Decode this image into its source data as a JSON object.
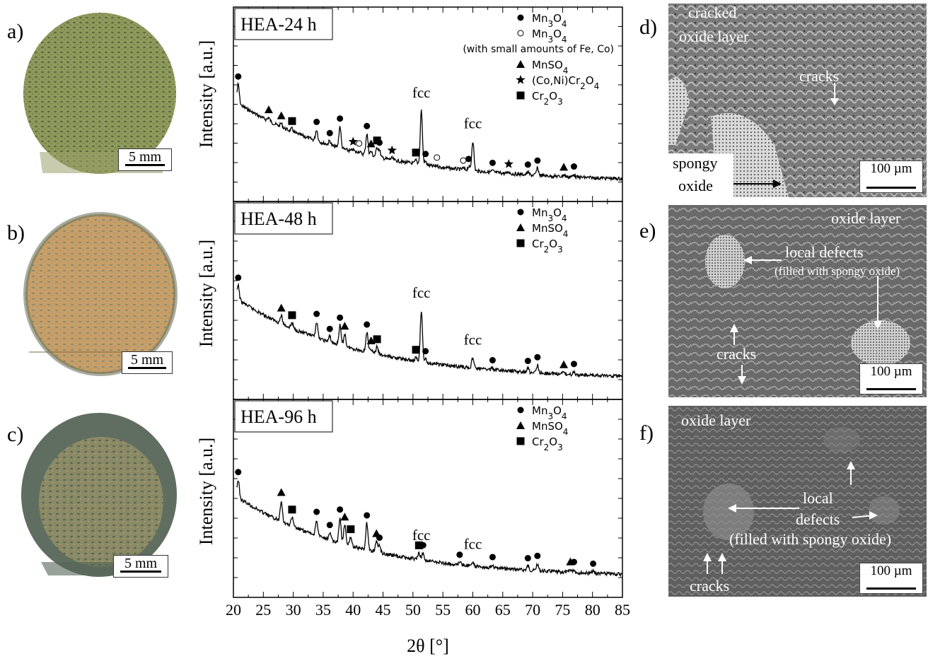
{
  "panel_labels": {
    "a": "a)",
    "b": "b)",
    "c": "c)",
    "d": "d)",
    "e": "e)",
    "f": "f)"
  },
  "photos": [
    {
      "label": "a)",
      "scale": "5 mm",
      "color": "#8a9257"
    },
    {
      "label": "b)",
      "scale": "5 mm",
      "color": "#c39a62"
    },
    {
      "label": "c)",
      "scale": "5 mm",
      "color": "#7a7f5e"
    }
  ],
  "sem": {
    "d": {
      "scale": "100 µm",
      "texts": [
        "cracked",
        "oxide layer",
        "cracks",
        "spongy",
        "oxide"
      ]
    },
    "e": {
      "scale": "100 µm",
      "texts": [
        "oxide layer",
        "local defects",
        "(filled with spongy oxide)",
        "cracks"
      ]
    },
    "f": {
      "scale": "100 µm",
      "texts": [
        "oxide layer",
        "local",
        "defects",
        "(filled with spongy oxide)",
        "cracks"
      ]
    }
  },
  "colors": {
    "line": "#000000",
    "frame": "#000000"
  },
  "chart_data": [
    {
      "type": "line",
      "title": "HEA-24 h",
      "ylabel": "Intensity [a.u.]",
      "xlabel": "2θ [°]",
      "xlim": [
        20,
        85
      ],
      "xticks": [
        20,
        25,
        30,
        35,
        40,
        45,
        50,
        55,
        60,
        65,
        70,
        75,
        80,
        85
      ],
      "legend": [
        {
          "symbol": "circle",
          "text": "Mn3O4"
        },
        {
          "symbol": "open-circle",
          "text": "Mn3O4",
          "note": "(with small amounts of Fe, Co)"
        },
        {
          "symbol": "triangle",
          "text": "MnSO4"
        },
        {
          "symbol": "star",
          "text": "(Co,Ni)Cr2O4"
        },
        {
          "symbol": "square",
          "text": "Cr2O3"
        }
      ],
      "annotations": [
        {
          "text": "fcc",
          "x": 51.4
        },
        {
          "text": "fcc",
          "x": 60.0
        }
      ],
      "peaks": [
        {
          "x": 20.8,
          "h": 0.55,
          "m": "circle"
        },
        {
          "x": 25.9,
          "h": 0.1,
          "m": "triangle"
        },
        {
          "x": 28.0,
          "h": 0.1,
          "m": "triangle"
        },
        {
          "x": 29.8,
          "h": 0.08,
          "m": "square"
        },
        {
          "x": 33.9,
          "h": 0.32,
          "m": "circle"
        },
        {
          "x": 36.1,
          "h": 0.12,
          "m": "circle"
        },
        {
          "x": 37.8,
          "h": 0.62,
          "m": "circle"
        },
        {
          "x": 40.0,
          "h": 0.06,
          "m": "star"
        },
        {
          "x": 41.0,
          "h": 0.05,
          "m": "open-circle"
        },
        {
          "x": 42.3,
          "h": 0.6,
          "m": "circle"
        },
        {
          "x": 43.0,
          "h": 0.12,
          "m": "triangle"
        },
        {
          "x": 44.0,
          "h": 0.25,
          "m": "square"
        },
        {
          "x": 44.4,
          "h": 0.2,
          "m": "circle"
        },
        {
          "x": 46.5,
          "h": 0.05,
          "m": "star"
        },
        {
          "x": 50.5,
          "h": 0.1,
          "m": "square"
        },
        {
          "x": 51.4,
          "h": 1.55,
          "m": null
        },
        {
          "x": 52.1,
          "h": 0.1,
          "m": "circle"
        },
        {
          "x": 54.0,
          "h": 0.04,
          "m": "open-circle"
        },
        {
          "x": 58.4,
          "h": 0.04,
          "m": "open-circle"
        },
        {
          "x": 59.3,
          "h": 0.1,
          "m": "circle"
        },
        {
          "x": 60.0,
          "h": 0.85,
          "m": null
        },
        {
          "x": 63.3,
          "h": 0.05,
          "m": "circle"
        },
        {
          "x": 66.0,
          "h": 0.05,
          "m": "star"
        },
        {
          "x": 69.2,
          "h": 0.07,
          "m": "circle"
        },
        {
          "x": 70.8,
          "h": 0.2,
          "m": "circle"
        },
        {
          "x": 75.2,
          "h": 0.05,
          "m": "triangle"
        },
        {
          "x": 76.9,
          "h": 0.08,
          "m": "circle"
        }
      ]
    },
    {
      "type": "line",
      "title": "HEA-48 h",
      "ylabel": "Intensity [a.u.]",
      "xlabel": "2θ [°]",
      "xlim": [
        20,
        85
      ],
      "xticks": [
        20,
        25,
        30,
        35,
        40,
        45,
        50,
        55,
        60,
        65,
        70,
        75,
        80,
        85
      ],
      "legend": [
        {
          "symbol": "circle",
          "text": "Mn3O4"
        },
        {
          "symbol": "triangle",
          "text": "MnSO4"
        },
        {
          "symbol": "square",
          "text": "Cr2O3"
        }
      ],
      "annotations": [
        {
          "text": "fcc",
          "x": 51.4
        },
        {
          "text": "fcc",
          "x": 60.0
        }
      ],
      "peaks": [
        {
          "x": 20.8,
          "h": 0.4,
          "m": "circle"
        },
        {
          "x": 28.0,
          "h": 0.22,
          "m": "triangle"
        },
        {
          "x": 29.8,
          "h": 0.15,
          "m": "square"
        },
        {
          "x": 33.9,
          "h": 0.45,
          "m": "circle"
        },
        {
          "x": 36.1,
          "h": 0.15,
          "m": "circle"
        },
        {
          "x": 37.8,
          "h": 0.55,
          "m": "circle"
        },
        {
          "x": 38.6,
          "h": 0.35,
          "m": "triangle"
        },
        {
          "x": 42.3,
          "h": 0.55,
          "m": "circle"
        },
        {
          "x": 43.0,
          "h": 0.12,
          "m": "triangle"
        },
        {
          "x": 44.0,
          "h": 0.2,
          "m": "square"
        },
        {
          "x": 50.5,
          "h": 0.1,
          "m": "square"
        },
        {
          "x": 51.4,
          "h": 1.45,
          "m": null
        },
        {
          "x": 52.1,
          "h": 0.1,
          "m": "circle"
        },
        {
          "x": 60.0,
          "h": 0.3,
          "m": null
        },
        {
          "x": 63.3,
          "h": 0.05,
          "m": "circle"
        },
        {
          "x": 69.2,
          "h": 0.1,
          "m": "circle"
        },
        {
          "x": 70.8,
          "h": 0.22,
          "m": "circle"
        },
        {
          "x": 75.2,
          "h": 0.05,
          "m": "triangle"
        },
        {
          "x": 76.9,
          "h": 0.08,
          "m": "circle"
        }
      ]
    },
    {
      "type": "line",
      "title": "HEA-96 h",
      "ylabel": "Intensity [a.u.]",
      "xlabel": "2θ [°]",
      "xlim": [
        20,
        85
      ],
      "xticks": [
        20,
        25,
        30,
        35,
        40,
        45,
        50,
        55,
        60,
        65,
        70,
        75,
        80,
        85
      ],
      "legend": [
        {
          "symbol": "circle",
          "text": "Mn3O4"
        },
        {
          "symbol": "triangle",
          "text": "MnSO4"
        },
        {
          "symbol": "square",
          "text": "Cr2O3"
        }
      ],
      "annotations": [
        {
          "text": "fcc",
          "x": 51.4
        },
        {
          "text": "fcc",
          "x": 60.0
        }
      ],
      "peaks": [
        {
          "x": 20.8,
          "h": 0.5,
          "m": "circle"
        },
        {
          "x": 28.0,
          "h": 0.6,
          "m": "triangle"
        },
        {
          "x": 29.8,
          "h": 0.25,
          "m": "square"
        },
        {
          "x": 33.9,
          "h": 0.45,
          "m": "circle"
        },
        {
          "x": 36.1,
          "h": 0.2,
          "m": "circle"
        },
        {
          "x": 37.8,
          "h": 0.72,
          "m": "circle"
        },
        {
          "x": 38.6,
          "h": 0.55,
          "m": "triangle"
        },
        {
          "x": 39.6,
          "h": 0.25,
          "m": "square"
        },
        {
          "x": 42.3,
          "h": 0.75,
          "m": "circle"
        },
        {
          "x": 43.9,
          "h": 0.3,
          "m": "triangle"
        },
        {
          "x": 44.4,
          "h": 0.2,
          "m": "circle"
        },
        {
          "x": 51.0,
          "h": 0.18,
          "m": "square"
        },
        {
          "x": 51.7,
          "h": 0.2,
          "m": "circle"
        },
        {
          "x": 57.8,
          "h": 0.06,
          "m": "circle"
        },
        {
          "x": 60.0,
          "h": 0.12,
          "m": null
        },
        {
          "x": 63.3,
          "h": 0.08,
          "m": "circle"
        },
        {
          "x": 69.2,
          "h": 0.12,
          "m": "circle"
        },
        {
          "x": 70.8,
          "h": 0.2,
          "m": "circle"
        },
        {
          "x": 76.3,
          "h": 0.08,
          "m": "triangle"
        },
        {
          "x": 76.9,
          "h": 0.08,
          "m": "circle"
        },
        {
          "x": 80.1,
          "h": 0.05,
          "m": "circle"
        }
      ]
    }
  ]
}
